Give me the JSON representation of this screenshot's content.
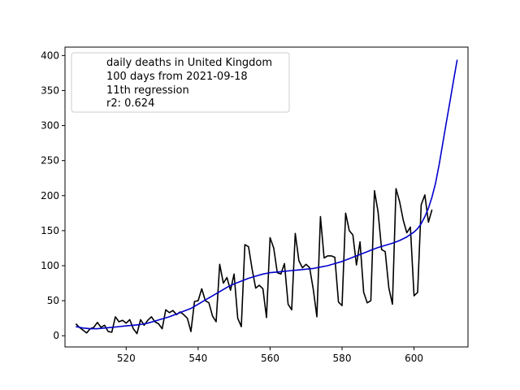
{
  "chart_data": {
    "type": "line",
    "title": "",
    "xlabel": "",
    "ylabel": "",
    "xlim": [
      503,
      615
    ],
    "ylim": [
      -16,
      412
    ],
    "x_ticks": [
      520,
      540,
      560,
      580,
      600
    ],
    "y_ticks": [
      0,
      50,
      100,
      150,
      200,
      250,
      300,
      350,
      400
    ],
    "x_tick_labels": [
      "520",
      "540",
      "560",
      "580",
      "600"
    ],
    "y_tick_labels": [
      "0",
      "50",
      "100",
      "150",
      "200",
      "250",
      "300",
      "350",
      "400"
    ],
    "grid": false,
    "legend": {
      "placement": "top-left",
      "lines": [
        "daily deaths in United Kingdom",
        "100 days from 2021-09-18",
        "11th regression",
        "r2: 0.624"
      ]
    },
    "series": [
      {
        "color": "#000000",
        "x": [
          506,
          507,
          508,
          509,
          510,
          511,
          512,
          513,
          514,
          515,
          516,
          517,
          518,
          519,
          520,
          521,
          522,
          523,
          524,
          525,
          526,
          527,
          528,
          529,
          530,
          531,
          532,
          533,
          534,
          535,
          536,
          537,
          538,
          539,
          540,
          541,
          542,
          543,
          544,
          545,
          546,
          547,
          548,
          549,
          550,
          551,
          552,
          553,
          554,
          555,
          556,
          557,
          558,
          559,
          560,
          561,
          562,
          563,
          564,
          565,
          566,
          567,
          568,
          569,
          570,
          571,
          572,
          573,
          574,
          575,
          576,
          577,
          578,
          579,
          580,
          581,
          582,
          583,
          584,
          585,
          586,
          587,
          588,
          589,
          590,
          591,
          592,
          593,
          594,
          595,
          596,
          597,
          598,
          599,
          600,
          601,
          602,
          603,
          604,
          605
        ],
        "y": [
          17,
          12,
          8,
          4,
          10,
          12,
          19,
          12,
          15,
          6,
          5,
          27,
          20,
          22,
          18,
          23,
          10,
          3,
          23,
          15,
          22,
          27,
          20,
          17,
          10,
          37,
          33,
          36,
          30,
          34,
          30,
          25,
          6,
          49,
          50,
          67,
          50,
          47,
          28,
          20,
          102,
          75,
          83,
          65,
          88,
          25,
          13,
          130,
          127,
          95,
          68,
          72,
          67,
          26,
          140,
          125,
          90,
          88,
          103,
          45,
          37,
          146,
          107,
          97,
          102,
          97,
          66,
          27,
          170,
          111,
          114,
          114,
          112,
          48,
          43,
          175,
          150,
          144,
          101,
          134,
          62,
          47,
          50,
          207,
          177,
          123,
          120,
          68,
          45,
          210,
          191,
          165,
          147,
          155,
          57,
          62,
          187,
          201,
          162,
          180
        ]
      },
      {
        "color": "#0000cc",
        "x": [
          506,
          508,
          510,
          512,
          514,
          516,
          518,
          520,
          522,
          524,
          526,
          528,
          530,
          532,
          534,
          536,
          538,
          540,
          542,
          544,
          546,
          548,
          550,
          552,
          554,
          556,
          558,
          560,
          562,
          564,
          566,
          568,
          570,
          572,
          574,
          576,
          578,
          580,
          582,
          584,
          586,
          588,
          590,
          592,
          594,
          596,
          598,
          600,
          601,
          602,
          603,
          604,
          605,
          606,
          607,
          608,
          609,
          610,
          611,
          612
        ],
        "y": [
          13,
          11,
          10,
          10,
          11,
          12,
          13,
          14,
          15,
          16,
          18,
          21,
          24,
          27,
          31,
          35,
          39,
          45,
          51,
          57,
          63,
          69,
          74,
          78,
          82,
          85,
          88,
          90,
          91,
          92,
          93,
          94,
          95,
          96,
          98,
          100,
          103,
          106,
          110,
          114,
          118,
          122,
          126,
          129,
          132,
          136,
          141,
          148,
          153,
          160,
          170,
          182,
          198,
          218,
          245,
          275,
          305,
          335,
          365,
          394
        ]
      }
    ]
  }
}
